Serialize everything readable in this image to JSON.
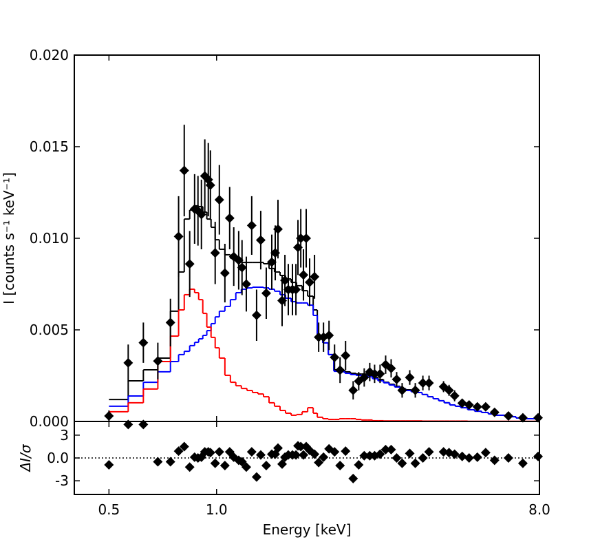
{
  "chart_data": [
    {
      "type": "errorbar",
      "ylabel": "I [counts s⁻¹ keV⁻¹]",
      "xscale": "log",
      "xlim": [
        0.4,
        8.0
      ],
      "ylim": [
        0,
        0.02
      ],
      "yticks": [
        {
          "value": 0,
          "label": "0.000"
        },
        {
          "value": 0.005,
          "label": "0.005"
        },
        {
          "value": 0.01,
          "label": "0.010"
        },
        {
          "value": 0.015,
          "label": "0.015"
        },
        {
          "value": 0.02,
          "label": "0.020"
        }
      ],
      "color": "#000000",
      "marker": "diamond",
      "x": [
        0.5,
        0.566,
        0.624,
        0.685,
        0.743,
        0.783,
        0.812,
        0.841,
        0.868,
        0.887,
        0.907,
        0.927,
        0.948,
        0.961,
        0.991,
        1.018,
        1.055,
        1.088,
        1.117,
        1.153,
        1.178,
        1.211,
        1.254,
        1.294,
        1.329,
        1.377,
        1.427,
        1.459,
        1.485,
        1.525,
        1.553,
        1.587,
        1.63,
        1.667,
        1.689,
        1.72,
        1.75,
        1.781,
        1.821,
        1.879,
        1.93,
        1.991,
        2.063,
        2.138,
        2.215,
        2.295,
        2.41,
        2.498,
        2.588,
        2.682,
        2.767,
        2.866,
        2.971,
        3.078,
        3.189,
        3.304,
        3.47,
        3.596,
        3.776,
        3.929,
        4.314,
        4.469,
        4.632,
        4.864,
        5.085,
        5.363,
        5.657,
        5.992,
        6.552,
        7.19,
        7.93
      ],
      "values": [
        0.0003,
        0.0032,
        0.0043,
        0.0033,
        0.0054,
        0.0101,
        0.0137,
        0.0086,
        0.0116,
        0.0115,
        0.0113,
        0.0134,
        0.0132,
        0.0129,
        0.0092,
        0.0121,
        0.0081,
        0.0111,
        0.009,
        0.0088,
        0.0084,
        0.0075,
        0.0107,
        0.0058,
        0.0099,
        0.007,
        0.0087,
        0.0092,
        0.0105,
        0.0066,
        0.0077,
        0.0072,
        0.0072,
        0.0072,
        0.0095,
        0.01,
        0.008,
        0.01,
        0.0076,
        0.0079,
        0.0046,
        0.0046,
        0.0047,
        0.0035,
        0.0028,
        0.0036,
        0.0017,
        0.0022,
        0.0024,
        0.0027,
        0.0026,
        0.0026,
        0.0031,
        0.0029,
        0.0023,
        0.0017,
        0.0024,
        0.0017,
        0.0021,
        0.0021,
        0.0019,
        0.0017,
        0.0014,
        0.001,
        0.0009,
        0.0008,
        0.0008,
        0.0005,
        0.0003,
        0.0002,
        0.0002
      ],
      "errors": [
        0.0003,
        0.001,
        0.0011,
        0.001,
        0.0013,
        0.0022,
        0.0025,
        0.0018,
        0.0019,
        0.0019,
        0.0019,
        0.002,
        0.002,
        0.0019,
        0.0017,
        0.0019,
        0.0016,
        0.0017,
        0.0016,
        0.0016,
        0.0015,
        0.0015,
        0.0016,
        0.0014,
        0.0016,
        0.0014,
        0.0015,
        0.0015,
        0.0016,
        0.0014,
        0.0014,
        0.0014,
        0.0014,
        0.0014,
        0.0015,
        0.0016,
        0.0014,
        0.0016,
        0.0013,
        0.0012,
        0.0008,
        0.0008,
        0.0008,
        0.0007,
        0.0007,
        0.0008,
        0.0005,
        0.0005,
        0.0005,
        0.0005,
        0.0005,
        0.0005,
        0.0005,
        0.0005,
        0.0004,
        0.0004,
        0.0004,
        0.0004,
        0.0004,
        0.0004,
        0.0003,
        0.0003,
        0.0003,
        0.0002,
        0.0002,
        0.0002,
        0.0002,
        0.0002,
        0.0002,
        0.0001,
        0.0001
      ],
      "model_bins": [
        0.5,
        0.566,
        0.624,
        0.685,
        0.743,
        0.783,
        0.812,
        0.841,
        0.868,
        0.891,
        0.915,
        0.939,
        0.965,
        0.991,
        1.018,
        1.055,
        1.093,
        1.132,
        1.173,
        1.216,
        1.26,
        1.306,
        1.353,
        1.402,
        1.452,
        1.505,
        1.559,
        1.616,
        1.674,
        1.735,
        1.798,
        1.863,
        1.913,
        1.982,
        2.054,
        2.128,
        2.205,
        2.285,
        2.368,
        2.454,
        2.542,
        2.634,
        2.73,
        2.828,
        2.931,
        3.037,
        3.147,
        3.26,
        3.378,
        3.501,
        3.627,
        3.758,
        3.894,
        4.035,
        4.181,
        4.333,
        4.489,
        4.652,
        4.82,
        5.04,
        5.269,
        5.508,
        5.758,
        6.02,
        6.436,
        6.879,
        7.354,
        8.0
      ],
      "models": [
        {
          "color": "#000000",
          "values": [
            0.0012,
            0.00222,
            0.00282,
            0.00346,
            0.00602,
            0.00816,
            0.01105,
            0.01154,
            0.01177,
            0.01173,
            0.01143,
            0.01105,
            0.0106,
            0.00992,
            0.0094,
            0.0091,
            0.00891,
            0.00876,
            0.00868,
            0.00868,
            0.00868,
            0.00868,
            0.00861,
            0.00835,
            0.00816,
            0.00797,
            0.00778,
            0.00759,
            0.00741,
            0.00714,
            0.00684,
            0.00609,
            0.00466,
            0.00429,
            0.00365,
            0.00282,
            0.00278,
            0.00271,
            0.00263,
            0.00259,
            0.00259,
            0.00252,
            0.00241,
            0.00229,
            0.00214,
            0.00203,
            0.00192,
            0.0018,
            0.00173,
            0.00165,
            0.00158,
            0.00147,
            0.00135,
            0.00124,
            0.00113,
            0.00102,
            0.0009,
            0.00083,
            0.00075,
            0.00064,
            0.00056,
            0.00049,
            0.00041,
            0.00034,
            0.00026,
            0.00019,
            0.00015
          ]
        },
        {
          "color": "#0000ff",
          "values": [
            0.00083,
            0.00139,
            0.00214,
            0.00271,
            0.00327,
            0.00365,
            0.00383,
            0.00414,
            0.00432,
            0.00451,
            0.0047,
            0.00496,
            0.00534,
            0.00571,
            0.00602,
            0.00628,
            0.00665,
            0.00703,
            0.00722,
            0.00729,
            0.00733,
            0.00733,
            0.00729,
            0.00722,
            0.00711,
            0.00692,
            0.00673,
            0.00654,
            0.00647,
            0.00647,
            0.00635,
            0.00579,
            0.00466,
            0.00429,
            0.00365,
            0.00274,
            0.00271,
            0.00263,
            0.00256,
            0.00252,
            0.00252,
            0.00244,
            0.00233,
            0.00222,
            0.00211,
            0.00199,
            0.00188,
            0.00177,
            0.00169,
            0.00162,
            0.00158,
            0.00147,
            0.00135,
            0.00124,
            0.00113,
            0.00102,
            0.0009,
            0.00083,
            0.00075,
            0.00064,
            0.00056,
            0.00049,
            0.00041,
            0.00034,
            0.00026,
            0.00019,
            0.00015
          ]
        },
        {
          "color": "#ff0000",
          "values": [
            0.00053,
            0.00102,
            0.00177,
            0.00327,
            0.00466,
            0.00609,
            0.00692,
            0.00722,
            0.00703,
            0.00665,
            0.0059,
            0.00515,
            0.00459,
            0.00402,
            0.00346,
            0.00252,
            0.00214,
            0.00195,
            0.0018,
            0.00169,
            0.00158,
            0.0015,
            0.00135,
            0.00102,
            0.00083,
            0.0006,
            0.00045,
            0.00034,
            0.00038,
            0.00053,
            0.00075,
            0.00045,
            0.00023,
            0.00015,
            0.00011,
            0.00011,
            0.00015,
            0.00015,
            0.00015,
            0.00011,
            8e-05,
            8e-05,
            4e-05,
            4e-05,
            3e-05,
            3e-05,
            3e-05,
            3e-05,
            3e-05,
            3e-05,
            3e-05,
            2e-05,
            2e-05,
            2e-05,
            2e-05,
            2e-05,
            2e-05,
            2e-05,
            2e-05,
            1e-05,
            1e-05,
            1e-05,
            1e-05,
            1e-05,
            1e-05,
            1e-05,
            1e-05
          ]
        }
      ]
    },
    {
      "type": "scatter",
      "xlabel": "Energy [keV]",
      "ylabel": "ΔI/σ",
      "xscale": "log",
      "xlim": [
        0.4,
        8.0
      ],
      "ylim": [
        -4.8,
        4.8
      ],
      "xticks": [
        0.5,
        {
          "value": 1.0,
          "label": "1.0"
        },
        {
          "value": 8.0,
          "label": "8.0"
        }
      ],
      "yticks": [
        3,
        {
          "value": 0,
          "label": "0.0"
        },
        -3
      ],
      "zero_line": "dotted",
      "color": "#000000",
      "marker": "diamond",
      "x": [
        0.5,
        0.566,
        0.624,
        0.685,
        0.743,
        0.783,
        0.812,
        0.841,
        0.868,
        0.887,
        0.907,
        0.927,
        0.948,
        0.961,
        0.991,
        1.018,
        1.055,
        1.088,
        1.117,
        1.153,
        1.178,
        1.211,
        1.254,
        1.294,
        1.329,
        1.377,
        1.427,
        1.459,
        1.485,
        1.525,
        1.553,
        1.587,
        1.63,
        1.667,
        1.689,
        1.72,
        1.75,
        1.781,
        1.821,
        1.879,
        1.93,
        1.991,
        2.063,
        2.138,
        2.215,
        2.295,
        2.41,
        2.498,
        2.588,
        2.682,
        2.767,
        2.866,
        2.971,
        3.078,
        3.189,
        3.304,
        3.47,
        3.596,
        3.776,
        3.929,
        4.314,
        4.469,
        4.632,
        4.864,
        5.085,
        5.363,
        5.657,
        5.992,
        6.552,
        7.19,
        7.93
      ],
      "values": [
        -0.9,
        4.4,
        4.4,
        -0.5,
        -0.5,
        0.9,
        1.5,
        -1.2,
        0.1,
        0,
        0.1,
        0.8,
        0.8,
        0.7,
        -0.7,
        0.8,
        -1.0,
        0.8,
        0.1,
        -0.3,
        -0.5,
        -1.2,
        0.8,
        -2.5,
        0.4,
        -1.0,
        0.5,
        0.5,
        1.3,
        -0.8,
        0.1,
        0.4,
        0.4,
        0.4,
        1.6,
        1.5,
        0.4,
        1.5,
        1.0,
        0.5,
        -0.6,
        0.1,
        1.2,
        0.8,
        -1.0,
        0.9,
        -2.7,
        -0.9,
        0.3,
        0.3,
        0.3,
        0.5,
        1.1,
        1.1,
        0,
        -0.7,
        0.6,
        -0.7,
        0,
        0.8,
        0.8,
        0.7,
        0.5,
        0.2,
        0,
        0.1,
        0.7,
        -0.3,
        0,
        -0.7,
        0.2
      ]
    }
  ]
}
